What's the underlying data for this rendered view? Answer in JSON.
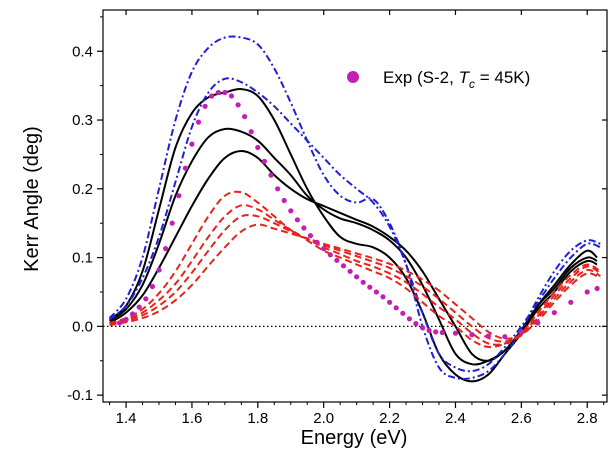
{
  "chart_data": {
    "type": "line",
    "xlabel": "Energy (eV)",
    "ylabel": "Kerr Angle (deg)",
    "xlim": [
      1.33,
      2.86
    ],
    "ylim": [
      -0.11,
      0.46
    ],
    "x_ticks": [
      1.4,
      1.6,
      1.8,
      2.0,
      2.2,
      2.4,
      2.6,
      2.8
    ],
    "x_tick_labels": [
      "1.4",
      "1.6",
      "1.8",
      "2.0",
      "2.2",
      "2.4",
      "2.6",
      "2.8"
    ],
    "y_ticks": [
      -0.1,
      0.0,
      0.1,
      0.2,
      0.3,
      0.4
    ],
    "y_tick_labels": [
      "-0.1",
      "0.0",
      "0.1",
      "0.2",
      "0.3",
      "0.4"
    ],
    "zero_line": true,
    "grid": false,
    "legend": {
      "position": "top-right",
      "prefix": "Exp (S-2, ",
      "tc_symbol": "T",
      "tc_subscript": "c",
      "tc_value": " = 45K)"
    },
    "colors": {
      "experiment": "#c41fb5",
      "black": "#000000",
      "blue": "#1f1fd6",
      "red": "#e8231b"
    },
    "series": [
      {
        "name": "Exp (S-2, Tc = 45K)",
        "style": "markers",
        "color_key": "experiment",
        "x": [
          1.38,
          1.4,
          1.42,
          1.44,
          1.46,
          1.48,
          1.5,
          1.52,
          1.54,
          1.56,
          1.58,
          1.6,
          1.62,
          1.64,
          1.66,
          1.68,
          1.7,
          1.72,
          1.74,
          1.76,
          1.78,
          1.8,
          1.82,
          1.84,
          1.86,
          1.88,
          1.9,
          1.92,
          1.94,
          1.96,
          1.98,
          2.0,
          2.02,
          2.04,
          2.06,
          2.08,
          2.1,
          2.12,
          2.14,
          2.16,
          2.18,
          2.2,
          2.22,
          2.24,
          2.26,
          2.28,
          2.3,
          2.32,
          2.34,
          2.36,
          2.4,
          2.45,
          2.5,
          2.55,
          2.6,
          2.65,
          2.7,
          2.75,
          2.8,
          2.83
        ],
        "y": [
          0.005,
          0.01,
          0.018,
          0.028,
          0.04,
          0.058,
          0.082,
          0.113,
          0.15,
          0.19,
          0.23,
          0.265,
          0.297,
          0.32,
          0.335,
          0.34,
          0.34,
          0.335,
          0.322,
          0.305,
          0.283,
          0.26,
          0.24,
          0.22,
          0.2,
          0.183,
          0.168,
          0.155,
          0.143,
          0.132,
          0.122,
          0.113,
          0.104,
          0.096,
          0.088,
          0.08,
          0.072,
          0.064,
          0.057,
          0.05,
          0.043,
          0.035,
          0.027,
          0.019,
          0.011,
          0.004,
          -0.002,
          -0.006,
          -0.008,
          -0.009,
          -0.01,
          -0.012,
          -0.014,
          -0.015,
          -0.008,
          0.005,
          0.02,
          0.035,
          0.05,
          0.055
        ]
      },
      {
        "name": "",
        "style": "solid",
        "color_key": "black",
        "x": [
          1.35,
          1.4,
          1.45,
          1.5,
          1.55,
          1.6,
          1.65,
          1.7,
          1.75,
          1.8,
          1.85,
          1.9,
          1.95,
          2.0,
          2.05,
          2.1,
          2.15,
          2.2,
          2.25,
          2.3,
          2.35,
          2.4,
          2.45,
          2.5,
          2.55,
          2.6,
          2.65,
          2.7,
          2.75,
          2.8,
          2.83
        ],
        "y": [
          0.01,
          0.03,
          0.08,
          0.17,
          0.26,
          0.31,
          0.333,
          0.34,
          0.345,
          0.335,
          0.3,
          0.25,
          0.2,
          0.16,
          0.13,
          0.12,
          0.115,
          0.1,
          0.07,
          0.02,
          -0.04,
          -0.07,
          -0.08,
          -0.07,
          -0.04,
          -0.01,
          0.03,
          0.06,
          0.09,
          0.11,
          0.1
        ]
      },
      {
        "name": "",
        "style": "solid",
        "color_key": "black",
        "x": [
          1.35,
          1.4,
          1.45,
          1.5,
          1.55,
          1.6,
          1.65,
          1.7,
          1.75,
          1.8,
          1.85,
          1.9,
          1.95,
          2.0,
          2.05,
          2.1,
          2.15,
          2.2,
          2.25,
          2.3,
          2.35,
          2.4,
          2.45,
          2.5,
          2.55,
          2.6,
          2.65,
          2.7,
          2.75,
          2.8,
          2.83
        ],
        "y": [
          0.008,
          0.025,
          0.06,
          0.12,
          0.19,
          0.24,
          0.275,
          0.287,
          0.283,
          0.27,
          0.245,
          0.22,
          0.19,
          0.17,
          0.157,
          0.15,
          0.14,
          0.125,
          0.1,
          0.06,
          0.01,
          -0.04,
          -0.055,
          -0.05,
          -0.035,
          -0.005,
          0.03,
          0.055,
          0.085,
          0.1,
          0.095
        ]
      },
      {
        "name": "",
        "style": "solid",
        "color_key": "black",
        "x": [
          1.35,
          1.4,
          1.45,
          1.5,
          1.55,
          1.6,
          1.65,
          1.7,
          1.75,
          1.8,
          1.85,
          1.9,
          1.95,
          2.0,
          2.05,
          2.1,
          2.15,
          2.2,
          2.25,
          2.3,
          2.35,
          2.4,
          2.45,
          2.5,
          2.55,
          2.6,
          2.65,
          2.7,
          2.75,
          2.8,
          2.83
        ],
        "y": [
          0.005,
          0.02,
          0.045,
          0.085,
          0.13,
          0.175,
          0.215,
          0.245,
          0.255,
          0.245,
          0.22,
          0.2,
          0.185,
          0.175,
          0.165,
          0.155,
          0.145,
          0.13,
          0.11,
          0.08,
          0.04,
          0.0,
          -0.04,
          -0.05,
          -0.035,
          -0.01,
          0.025,
          0.05,
          0.08,
          0.095,
          0.09
        ]
      },
      {
        "name": "",
        "style": "dash-dot",
        "color_key": "blue",
        "x": [
          1.35,
          1.4,
          1.45,
          1.5,
          1.55,
          1.6,
          1.65,
          1.7,
          1.75,
          1.8,
          1.85,
          1.9,
          1.95,
          2.0,
          2.05,
          2.1,
          2.15,
          2.2,
          2.25,
          2.3,
          2.35,
          2.4,
          2.45,
          2.5,
          2.55,
          2.6,
          2.65,
          2.7,
          2.75,
          2.8,
          2.84
        ],
        "y": [
          0.012,
          0.04,
          0.1,
          0.2,
          0.3,
          0.37,
          0.405,
          0.42,
          0.42,
          0.41,
          0.375,
          0.325,
          0.27,
          0.22,
          0.19,
          0.18,
          0.185,
          0.15,
          0.09,
          0.0,
          -0.06,
          -0.075,
          -0.075,
          -0.065,
          -0.04,
          -0.005,
          0.04,
          0.08,
          0.11,
          0.125,
          0.12
        ]
      },
      {
        "name": "",
        "style": "dash-dot",
        "color_key": "blue",
        "x": [
          1.35,
          1.4,
          1.45,
          1.5,
          1.55,
          1.6,
          1.65,
          1.7,
          1.75,
          1.8,
          1.85,
          1.9,
          1.95,
          2.0,
          2.05,
          2.1,
          2.15,
          2.2,
          2.25,
          2.3,
          2.35,
          2.4,
          2.45,
          2.5,
          2.55,
          2.6,
          2.65,
          2.7,
          2.75,
          2.8,
          2.84
        ],
        "y": [
          0.01,
          0.03,
          0.07,
          0.13,
          0.21,
          0.29,
          0.34,
          0.36,
          0.355,
          0.34,
          0.32,
          0.295,
          0.27,
          0.245,
          0.22,
          0.2,
          0.18,
          0.145,
          0.09,
          0.02,
          -0.04,
          -0.06,
          -0.065,
          -0.055,
          -0.03,
          0.0,
          0.035,
          0.07,
          0.1,
          0.12,
          0.115
        ]
      },
      {
        "name": "",
        "style": "dashed",
        "color_key": "red",
        "x": [
          1.35,
          1.4,
          1.45,
          1.5,
          1.55,
          1.6,
          1.65,
          1.7,
          1.75,
          1.8,
          1.85,
          1.9,
          1.95,
          2.0,
          2.05,
          2.1,
          2.15,
          2.2,
          2.25,
          2.3,
          2.35,
          2.4,
          2.45,
          2.5,
          2.55,
          2.6,
          2.65,
          2.7,
          2.75,
          2.8,
          2.84
        ],
        "y": [
          0.005,
          0.012,
          0.025,
          0.048,
          0.08,
          0.12,
          0.16,
          0.19,
          0.195,
          0.18,
          0.16,
          0.14,
          0.125,
          0.11,
          0.1,
          0.09,
          0.08,
          0.07,
          0.055,
          0.035,
          0.015,
          0.0,
          -0.02,
          -0.03,
          -0.025,
          -0.01,
          0.02,
          0.05,
          0.075,
          0.09,
          0.08
        ]
      },
      {
        "name": "",
        "style": "dashed",
        "color_key": "red",
        "x": [
          1.35,
          1.4,
          1.45,
          1.5,
          1.55,
          1.6,
          1.65,
          1.7,
          1.75,
          1.8,
          1.85,
          1.9,
          1.95,
          2.0,
          2.05,
          2.1,
          2.15,
          2.2,
          2.25,
          2.3,
          2.35,
          2.4,
          2.45,
          2.5,
          2.55,
          2.6,
          2.65,
          2.7,
          2.75,
          2.8,
          2.84
        ],
        "y": [
          0.004,
          0.01,
          0.02,
          0.038,
          0.062,
          0.095,
          0.13,
          0.16,
          0.176,
          0.17,
          0.155,
          0.14,
          0.127,
          0.115,
          0.105,
          0.095,
          0.087,
          0.077,
          0.064,
          0.047,
          0.028,
          0.01,
          -0.01,
          -0.025,
          -0.025,
          -0.012,
          0.015,
          0.045,
          0.07,
          0.087,
          0.077
        ]
      },
      {
        "name": "",
        "style": "dashed",
        "color_key": "red",
        "x": [
          1.35,
          1.4,
          1.45,
          1.5,
          1.55,
          1.6,
          1.65,
          1.7,
          1.75,
          1.8,
          1.85,
          1.9,
          1.95,
          2.0,
          2.05,
          2.1,
          2.15,
          2.2,
          2.25,
          2.3,
          2.35,
          2.4,
          2.45,
          2.5,
          2.55,
          2.6,
          2.65,
          2.7,
          2.75,
          2.8,
          2.84
        ],
        "y": [
          0.003,
          0.008,
          0.016,
          0.03,
          0.05,
          0.078,
          0.11,
          0.14,
          0.16,
          0.16,
          0.15,
          0.138,
          0.127,
          0.118,
          0.11,
          0.102,
          0.094,
          0.085,
          0.073,
          0.058,
          0.04,
          0.02,
          0.0,
          -0.017,
          -0.022,
          -0.013,
          0.012,
          0.04,
          0.065,
          0.082,
          0.073
        ]
      },
      {
        "name": "",
        "style": "dashed",
        "color_key": "red",
        "x": [
          1.35,
          1.4,
          1.45,
          1.5,
          1.55,
          1.6,
          1.65,
          1.7,
          1.75,
          1.8,
          1.85,
          1.9,
          1.95,
          2.0,
          2.05,
          2.1,
          2.15,
          2.2,
          2.25,
          2.3,
          2.35,
          2.4,
          2.45,
          2.5,
          2.55,
          2.6,
          2.65,
          2.7,
          2.75,
          2.8,
          2.84
        ],
        "y": [
          0.002,
          0.006,
          0.012,
          0.022,
          0.038,
          0.06,
          0.088,
          0.115,
          0.138,
          0.148,
          0.142,
          0.135,
          0.128,
          0.12,
          0.113,
          0.106,
          0.099,
          0.091,
          0.081,
          0.068,
          0.052,
          0.032,
          0.012,
          -0.008,
          -0.018,
          -0.012,
          0.008,
          0.035,
          0.06,
          0.077,
          0.07
        ]
      }
    ]
  }
}
